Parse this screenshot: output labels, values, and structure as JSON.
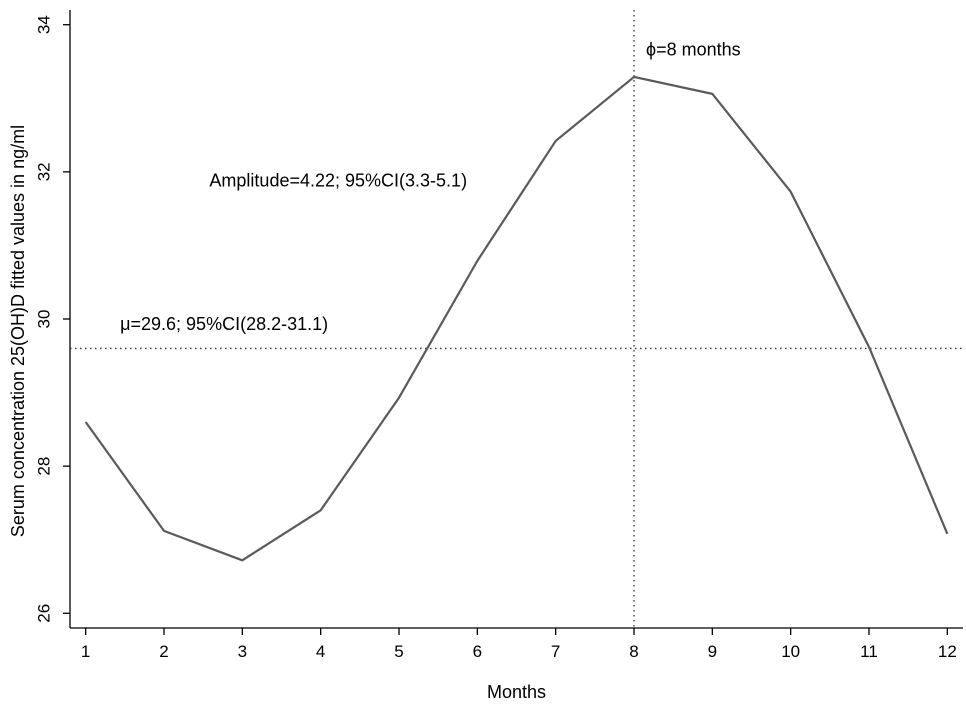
{
  "chart_data": {
    "type": "line",
    "title": "",
    "xlabel": "Months",
    "ylabel": "Serum concentration 25(OH)D fitted values in ng/ml",
    "x": [
      1,
      2,
      3,
      4,
      5,
      6,
      7,
      8,
      9,
      10,
      11,
      12
    ],
    "x_ticks": [
      "1",
      "2",
      "3",
      "4",
      "5",
      "6",
      "7",
      "8",
      "9",
      "10",
      "11",
      "12"
    ],
    "xlim": [
      0.8,
      12.2
    ],
    "y_ticks": [
      "26",
      "28",
      "30",
      "32",
      "34"
    ],
    "ylim": [
      25.8,
      34.2
    ],
    "series": [
      {
        "values": [
          28.6,
          27.12,
          26.72,
          27.4,
          28.93,
          30.79,
          32.42,
          33.29,
          33.06,
          31.73,
          29.62,
          27.08
        ],
        "color": "#5a5a5a"
      }
    ],
    "reference_lines": {
      "mean_y": 29.6,
      "phase_x": 8
    },
    "annotations": {
      "phase": "ϕ=8 months",
      "amplitude": "Amplitude=4.22; 95%CI(3.3-5.1)",
      "mean": "μ=29.6; 95%CI(28.2-31.1)"
    },
    "grid": false,
    "legend": "none"
  }
}
